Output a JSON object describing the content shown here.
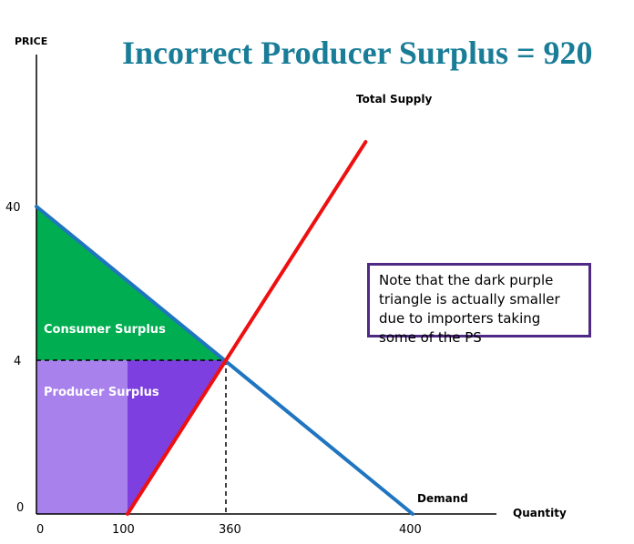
{
  "chart_data": {
    "type": "area",
    "title": "Incorrect Producer Surplus = 920",
    "ylabel": "PRICE",
    "xlabel": "Quantity",
    "x_ticks": [
      "0",
      "100",
      "360",
      "400"
    ],
    "y_ticks": [
      "0",
      "4",
      "40"
    ],
    "demand": {
      "label": "Demand",
      "x": [
        0,
        400
      ],
      "y": [
        40,
        0
      ]
    },
    "total_supply": {
      "label": "Total Supply",
      "x": [
        100,
        360
      ],
      "y": [
        0,
        4
      ]
    },
    "equilibrium": {
      "x": 360,
      "y": 4
    },
    "areas": [
      {
        "label": "Consumer Surplus",
        "color": "#00ad50"
      },
      {
        "label": "Producer Surplus",
        "color": "#a881ec"
      },
      {
        "label": "",
        "color": "#7d3fe0"
      }
    ],
    "note": "Note that the dark purple triangle is actually smaller due to importers taking some of the PS"
  },
  "colors": {
    "title": "#197d98",
    "demand": "#1f75c0",
    "supply": "#ee1010",
    "note_border": "#4e2a84"
  }
}
